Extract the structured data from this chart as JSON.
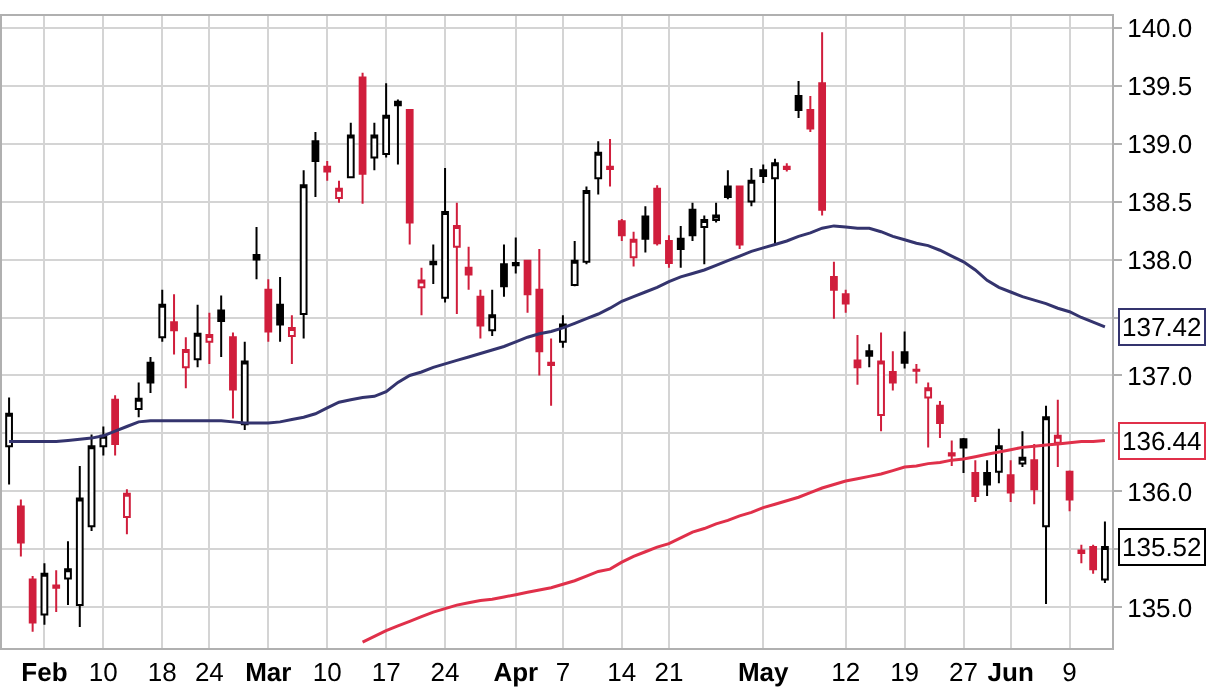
{
  "chart_data": {
    "type": "candlestick",
    "categories": [
      null,
      null,
      null,
      "Feb",
      null,
      null,
      null,
      null,
      "10",
      null,
      null,
      null,
      null,
      "18",
      null,
      null,
      null,
      "24",
      null,
      null,
      null,
      null,
      "Mar",
      null,
      null,
      null,
      null,
      "10",
      null,
      null,
      null,
      null,
      "17",
      null,
      null,
      null,
      null,
      "24",
      null,
      null,
      null,
      null,
      null,
      "Apr",
      null,
      null,
      null,
      "7",
      null,
      null,
      null,
      null,
      "14",
      null,
      null,
      null,
      "21",
      null,
      null,
      null,
      null,
      null,
      null,
      null,
      "May",
      null,
      null,
      null,
      null,
      null,
      null,
      "12",
      null,
      null,
      null,
      null,
      "19",
      null,
      null,
      null,
      null,
      "27",
      null,
      null,
      null,
      "Jun",
      null,
      null,
      null,
      null,
      "9",
      null,
      null,
      null
    ],
    "ohlc": [
      [
        136.39,
        136.81,
        136.06,
        136.67
      ],
      [
        135.87,
        135.93,
        135.44,
        135.56
      ],
      [
        135.24,
        135.27,
        134.79,
        134.87
      ],
      [
        134.94,
        135.38,
        134.85,
        135.29
      ],
      [
        135.19,
        135.32,
        134.96,
        135.17
      ],
      [
        135.25,
        135.57,
        135.02,
        135.33
      ],
      [
        135.02,
        136.22,
        134.83,
        135.94
      ],
      [
        135.7,
        136.49,
        135.66,
        136.39
      ],
      [
        136.39,
        136.56,
        136.31,
        136.48
      ],
      [
        136.79,
        136.83,
        136.31,
        136.41
      ],
      [
        135.78,
        136.02,
        135.63,
        135.98
      ],
      [
        136.71,
        136.94,
        136.64,
        136.8
      ],
      [
        137.11,
        137.16,
        136.85,
        136.94
      ],
      [
        137.33,
        137.74,
        137.29,
        137.61
      ],
      [
        137.46,
        137.7,
        137.18,
        137.39
      ],
      [
        137.07,
        137.33,
        136.89,
        137.22
      ],
      [
        137.14,
        137.61,
        137.07,
        137.36
      ],
      [
        137.29,
        137.54,
        137.1,
        137.35
      ],
      [
        137.56,
        137.69,
        137.16,
        137.47
      ],
      [
        137.33,
        137.37,
        136.63,
        136.88
      ],
      [
        136.58,
        137.29,
        136.53,
        137.12
      ],
      [
        138.04,
        138.28,
        137.83,
        138.0
      ],
      [
        137.74,
        137.83,
        137.29,
        137.38
      ],
      [
        137.61,
        137.85,
        137.29,
        137.44
      ],
      [
        137.34,
        137.52,
        137.1,
        137.41
      ],
      [
        137.53,
        138.77,
        137.32,
        138.64
      ],
      [
        139.02,
        139.1,
        138.54,
        138.85
      ],
      [
        138.8,
        138.85,
        138.68,
        138.76
      ],
      [
        138.53,
        138.68,
        138.49,
        138.61
      ],
      [
        138.71,
        139.18,
        138.7,
        139.07
      ],
      [
        139.57,
        139.61,
        138.48,
        138.74
      ],
      [
        138.88,
        139.18,
        138.77,
        139.07
      ],
      [
        138.91,
        139.52,
        138.88,
        139.24
      ],
      [
        139.36,
        139.38,
        138.82,
        139.33
      ],
      [
        139.29,
        139.29,
        138.13,
        138.32
      ],
      [
        137.76,
        137.93,
        137.52,
        137.82
      ],
      [
        137.98,
        138.13,
        137.79,
        137.96
      ],
      [
        137.67,
        138.79,
        137.63,
        138.41
      ],
      [
        138.11,
        138.49,
        137.53,
        138.29
      ],
      [
        137.93,
        138.11,
        137.74,
        137.87
      ],
      [
        137.68,
        137.74,
        137.32,
        137.43
      ],
      [
        137.39,
        137.74,
        137.34,
        137.52
      ],
      [
        137.96,
        138.13,
        137.68,
        137.77
      ],
      [
        137.97,
        138.19,
        137.88,
        137.95
      ],
      [
        137.99,
        137.99,
        137.54,
        137.7
      ],
      [
        137.74,
        138.09,
        137.0,
        137.21
      ],
      [
        137.11,
        137.32,
        136.74,
        137.09
      ],
      [
        137.29,
        137.52,
        137.24,
        137.44
      ],
      [
        137.78,
        138.16,
        137.77,
        137.99
      ],
      [
        137.98,
        138.63,
        137.96,
        138.59
      ],
      [
        138.7,
        139.02,
        138.56,
        138.92
      ],
      [
        138.8,
        139.04,
        138.63,
        138.78
      ],
      [
        138.33,
        138.35,
        138.16,
        138.21
      ],
      [
        138.02,
        138.24,
        137.94,
        138.17
      ],
      [
        138.37,
        138.46,
        138.06,
        138.18
      ],
      [
        138.61,
        138.64,
        138.12,
        138.14
      ],
      [
        138.16,
        138.21,
        137.93,
        137.97
      ],
      [
        138.18,
        138.29,
        137.93,
        138.09
      ],
      [
        138.43,
        138.49,
        138.16,
        138.21
      ],
      [
        138.28,
        138.38,
        137.96,
        138.34
      ],
      [
        138.34,
        138.49,
        138.32,
        138.38
      ],
      [
        138.63,
        138.77,
        138.52,
        138.54
      ],
      [
        138.63,
        138.63,
        138.09,
        138.13
      ],
      [
        138.5,
        138.79,
        138.46,
        138.68
      ],
      [
        138.77,
        138.82,
        138.66,
        138.72
      ],
      [
        138.7,
        138.87,
        138.13,
        138.83
      ],
      [
        138.8,
        138.83,
        138.76,
        138.78
      ],
      [
        139.41,
        139.54,
        139.22,
        139.29
      ],
      [
        139.29,
        139.41,
        139.1,
        139.13
      ],
      [
        139.52,
        139.96,
        138.38,
        138.43
      ],
      [
        137.85,
        137.98,
        137.49,
        137.74
      ],
      [
        137.7,
        137.74,
        137.54,
        137.62
      ],
      [
        137.13,
        137.35,
        136.92,
        137.07
      ],
      [
        137.21,
        137.27,
        137.07,
        137.17
      ],
      [
        136.66,
        137.37,
        136.52,
        137.12
      ],
      [
        137.03,
        137.21,
        136.87,
        136.94
      ],
      [
        137.2,
        137.38,
        137.06,
        137.11
      ],
      [
        137.05,
        137.1,
        136.93,
        137.04
      ],
      [
        136.81,
        136.94,
        136.38,
        136.89
      ],
      [
        136.74,
        136.78,
        136.46,
        136.59
      ],
      [
        136.33,
        136.44,
        136.22,
        136.31
      ],
      [
        136.45,
        136.46,
        136.16,
        136.38
      ],
      [
        136.16,
        136.27,
        135.91,
        135.96
      ],
      [
        136.16,
        136.27,
        135.96,
        136.06
      ],
      [
        136.17,
        136.54,
        136.07,
        136.39
      ],
      [
        136.14,
        136.27,
        135.91,
        135.99
      ],
      [
        136.24,
        136.52,
        136.21,
        136.29
      ],
      [
        136.27,
        136.41,
        135.89,
        136.02
      ],
      [
        135.7,
        136.74,
        135.03,
        136.64
      ],
      [
        136.42,
        136.79,
        136.21,
        136.48
      ],
      [
        136.17,
        136.18,
        135.83,
        135.93
      ],
      [
        135.49,
        135.54,
        135.38,
        135.47
      ],
      [
        135.52,
        135.54,
        135.29,
        135.33
      ],
      [
        135.24,
        135.74,
        135.21,
        135.52
      ]
    ],
    "colors": [
      "#000000",
      "#d01e3c",
      "#d01e3c",
      "#000000",
      "#d01e3c",
      "#000000",
      "#000000",
      "#000000",
      "#000000",
      "#d01e3c",
      "#d01e3c",
      "#000000",
      "#000000",
      "#000000",
      "#d01e3c",
      "#d01e3c",
      "#000000",
      "#d01e3c",
      "#000000",
      "#d01e3c",
      "#000000",
      "#000000",
      "#d01e3c",
      "#000000",
      "#d01e3c",
      "#000000",
      "#000000",
      "#d01e3c",
      "#d01e3c",
      "#000000",
      "#d01e3c",
      "#000000",
      "#000000",
      "#000000",
      "#d01e3c",
      "#d01e3c",
      "#000000",
      "#000000",
      "#d01e3c",
      "#d01e3c",
      "#d01e3c",
      "#000000",
      "#000000",
      "#000000",
      "#d01e3c",
      "#d01e3c",
      "#d01e3c",
      "#000000",
      "#000000",
      "#000000",
      "#000000",
      "#d01e3c",
      "#d01e3c",
      "#d01e3c",
      "#000000",
      "#d01e3c",
      "#d01e3c",
      "#000000",
      "#000000",
      "#000000",
      "#000000",
      "#000000",
      "#d01e3c",
      "#000000",
      "#000000",
      "#000000",
      "#d01e3c",
      "#000000",
      "#d01e3c",
      "#d01e3c",
      "#d01e3c",
      "#d01e3c",
      "#d01e3c",
      "#000000",
      "#d01e3c",
      "#d01e3c",
      "#000000",
      "#d01e3c",
      "#d01e3c",
      "#d01e3c",
      "#d01e3c",
      "#000000",
      "#d01e3c",
      "#000000",
      "#000000",
      "#d01e3c",
      "#000000",
      "#d01e3c",
      "#000000",
      "#d01e3c",
      "#d01e3c",
      "#d01e3c",
      "#d01e3c",
      "#000000"
    ],
    "series": [
      {
        "type": "line",
        "color": "#34346e",
        "values": [
          136.43,
          136.43,
          136.43,
          136.43,
          136.43,
          136.44,
          136.45,
          136.46,
          136.48,
          136.52,
          136.56,
          136.6,
          136.61,
          136.61,
          136.61,
          136.61,
          136.61,
          136.61,
          136.61,
          136.6,
          136.59,
          136.59,
          136.59,
          136.6,
          136.62,
          136.64,
          136.67,
          136.72,
          136.77,
          136.79,
          136.81,
          136.82,
          136.86,
          136.94,
          137.0,
          137.03,
          137.07,
          137.1,
          137.13,
          137.16,
          137.19,
          137.22,
          137.25,
          137.29,
          137.33,
          137.36,
          137.38,
          137.41,
          137.45,
          137.49,
          137.53,
          137.58,
          137.64,
          137.68,
          137.72,
          137.76,
          137.81,
          137.85,
          137.88,
          137.91,
          137.95,
          137.99,
          138.03,
          138.07,
          138.1,
          138.13,
          138.16,
          138.2,
          138.23,
          138.27,
          138.29,
          138.28,
          138.27,
          138.27,
          138.24,
          138.2,
          138.17,
          138.14,
          138.12,
          138.08,
          138.03,
          137.98,
          137.91,
          137.82,
          137.76,
          137.72,
          137.68,
          137.65,
          137.62,
          137.58,
          137.55,
          137.5,
          137.46,
          137.42
        ]
      },
      {
        "type": "line",
        "color": "#e0304a",
        "values": [
          null,
          null,
          null,
          null,
          null,
          null,
          null,
          null,
          null,
          null,
          null,
          null,
          null,
          null,
          null,
          null,
          null,
          null,
          null,
          null,
          null,
          null,
          null,
          null,
          null,
          null,
          null,
          null,
          null,
          null,
          134.7,
          134.75,
          134.8,
          134.84,
          134.88,
          134.92,
          134.96,
          134.99,
          135.02,
          135.04,
          135.06,
          135.07,
          135.09,
          135.11,
          135.13,
          135.15,
          135.17,
          135.2,
          135.23,
          135.27,
          135.31,
          135.33,
          135.39,
          135.44,
          135.48,
          135.52,
          135.55,
          135.6,
          135.65,
          135.68,
          135.72,
          135.75,
          135.79,
          135.82,
          135.86,
          135.89,
          135.92,
          135.95,
          135.99,
          136.03,
          136.06,
          136.09,
          136.11,
          136.13,
          136.15,
          136.18,
          136.21,
          136.22,
          136.24,
          136.25,
          136.27,
          136.28,
          136.3,
          136.32,
          136.34,
          136.36,
          136.38,
          136.39,
          136.4,
          136.41,
          136.42,
          136.43,
          136.43,
          136.44
        ]
      }
    ],
    "ylim": [
      134.65,
      140.1
    ],
    "yticks": [
      {
        "value": 135,
        "label": "135.0"
      },
      {
        "value": 135.5,
        "label": null
      },
      {
        "value": 136,
        "label": "136.0"
      },
      {
        "value": 136.5,
        "label": null
      },
      {
        "value": 137,
        "label": "137.0"
      },
      {
        "value": 137.5,
        "label": null
      },
      {
        "value": 138,
        "label": "138.0"
      },
      {
        "value": 138.5,
        "label": "138.5"
      },
      {
        "value": 139,
        "label": "139.0"
      },
      {
        "value": 139.5,
        "label": "139.5"
      },
      {
        "value": 140,
        "label": "140.0"
      }
    ],
    "grid": true,
    "annotations": [
      "137.42",
      "136.44",
      "135.52"
    ]
  }
}
